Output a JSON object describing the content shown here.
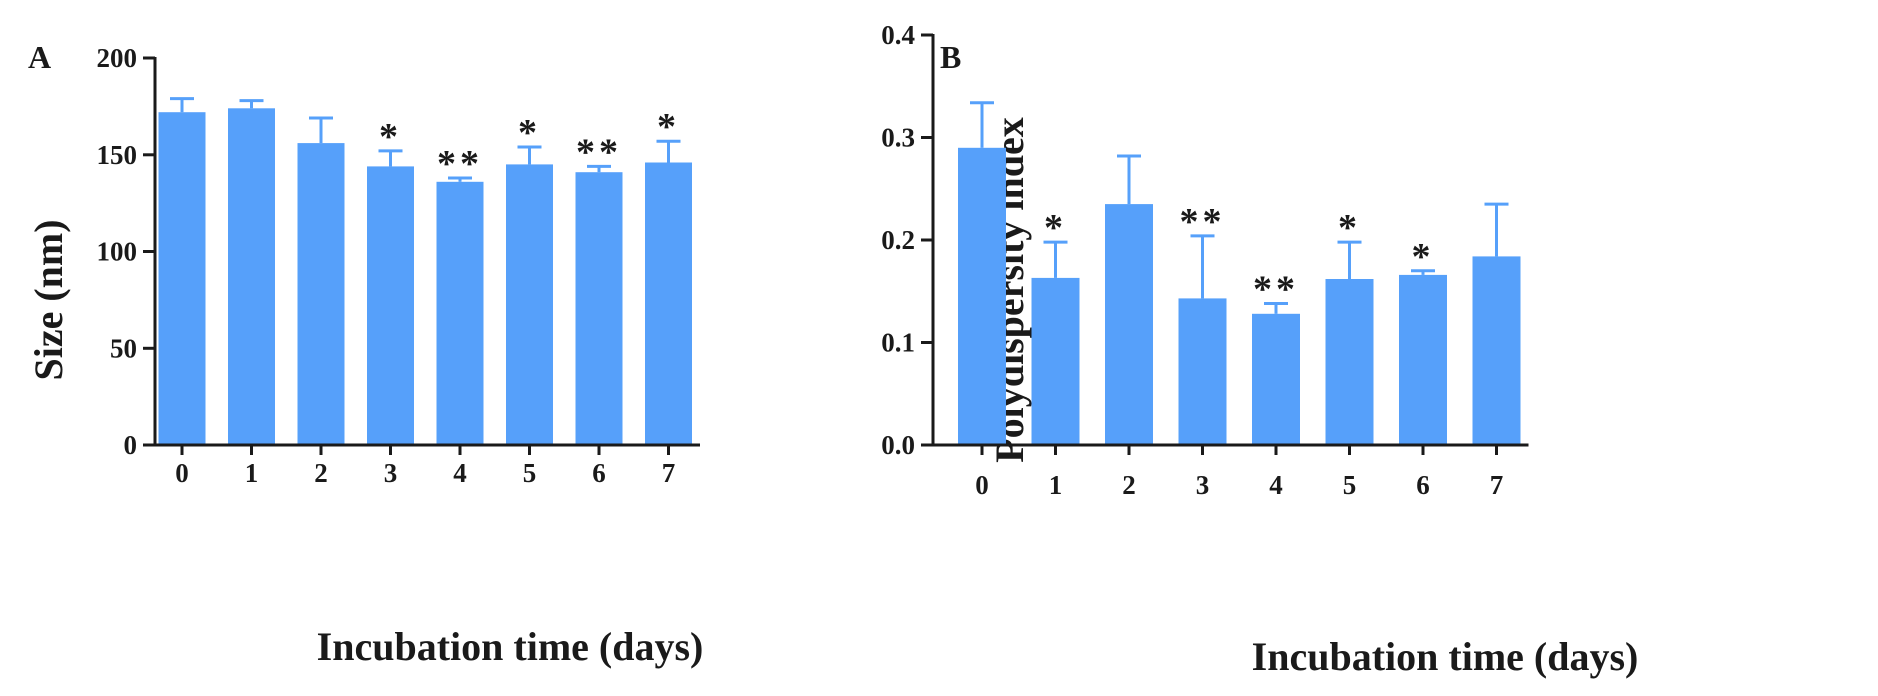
{
  "colors": {
    "bar": "#56a0fa",
    "axis": "#1a1a1a"
  },
  "chart_data": [
    {
      "type": "bar",
      "panel": "A",
      "categories": [
        "0",
        "1",
        "2",
        "3",
        "4",
        "5",
        "6",
        "7"
      ],
      "values": [
        172,
        174,
        156,
        144,
        136,
        145,
        141,
        146
      ],
      "errors": [
        7,
        4,
        13,
        8,
        2,
        9,
        3,
        11
      ],
      "significance": [
        "",
        "",
        "",
        "*",
        "**",
        "*",
        "**",
        "*"
      ],
      "xlabel": "Incubation time (days)",
      "ylabel": "Size (nm)",
      "ylim": [
        0,
        200
      ],
      "yticks": [
        0,
        50,
        100,
        150,
        200
      ],
      "ytick_labels": [
        "0",
        "50",
        "100",
        "150",
        "200"
      ]
    },
    {
      "type": "bar",
      "panel": "B",
      "categories": [
        "0",
        "1",
        "2",
        "3",
        "4",
        "5",
        "6",
        "7"
      ],
      "values": [
        0.29,
        0.163,
        0.235,
        0.143,
        0.128,
        0.162,
        0.166,
        0.184
      ],
      "errors": [
        0.044,
        0.035,
        0.047,
        0.061,
        0.01,
        0.036,
        0.004,
        0.051
      ],
      "significance": [
        "",
        "*",
        "",
        "**",
        "**",
        "*",
        "*",
        ""
      ],
      "xlabel": "Incubation time (days)",
      "ylabel": "Polydispersity index",
      "ylim": [
        0,
        0.4
      ],
      "yticks": [
        0,
        0.1,
        0.2,
        0.3,
        0.4
      ],
      "ytick_labels": [
        "0.0",
        "0.1",
        "0.2",
        "0.3",
        "0.4"
      ]
    }
  ]
}
